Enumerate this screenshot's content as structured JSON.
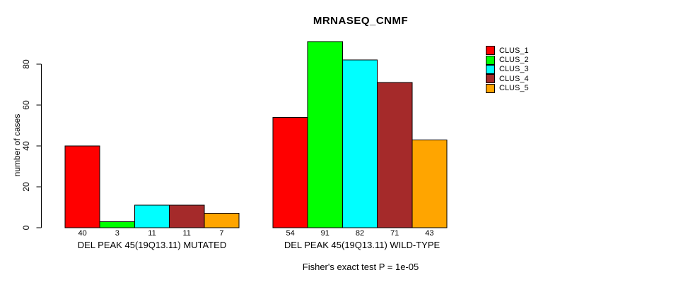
{
  "chart_data": {
    "type": "bar",
    "title": "MRNASEQ_CNMF",
    "ylabel": "number of cases",
    "xlabel": "",
    "ylim": [
      0,
      80
    ],
    "yticks": [
      0,
      20,
      40,
      60,
      80
    ],
    "grid": false,
    "legend_position": "top-right",
    "bar_value_labels": true,
    "categories": [
      "DEL PEAK 45(19Q13.11) MUTATED",
      "DEL PEAK 45(19Q13.11) WILD-TYPE"
    ],
    "series": [
      {
        "name": "CLUS_1",
        "color": "#FF0000",
        "values": [
          40,
          54
        ]
      },
      {
        "name": "CLUS_2",
        "color": "#00FF00",
        "values": [
          3,
          91
        ]
      },
      {
        "name": "CLUS_3",
        "color": "#00FFFF",
        "values": [
          11,
          82
        ]
      },
      {
        "name": "CLUS_4",
        "color": "#A52A2A",
        "values": [
          11,
          71
        ]
      },
      {
        "name": "CLUS_5",
        "color": "#FFA500",
        "values": [
          7,
          43
        ]
      }
    ],
    "annotation": "Fisher's exact test P = 1e-05"
  }
}
